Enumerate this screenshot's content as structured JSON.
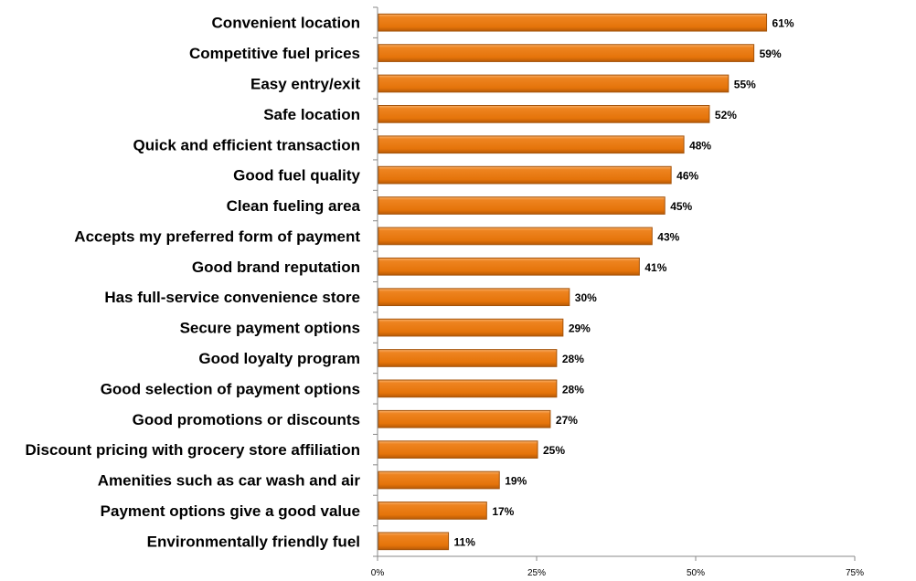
{
  "chart_data": {
    "type": "bar",
    "orientation": "horizontal",
    "title": "",
    "xlabel": "",
    "ylabel": "",
    "xlim": [
      0,
      75
    ],
    "x_ticks": [
      "0%",
      "25%",
      "50%",
      "75%"
    ],
    "x_tick_values": [
      0,
      25,
      50,
      75
    ],
    "grid": false,
    "legend": "none",
    "bar_color": "#e8760a",
    "categories": [
      "Convenient location",
      "Competitive fuel prices",
      "Easy entry/exit",
      "Safe location",
      "Quick and efficient transaction",
      "Good fuel quality",
      "Clean fueling area",
      "Accepts my preferred form of payment",
      "Good brand reputation",
      "Has full-service convenience store",
      "Secure payment options",
      "Good loyalty program",
      "Good selection of payment options",
      "Good promotions or discounts",
      "Discount pricing with grocery store affiliation",
      "Amenities such as car wash and air",
      "Payment options give a good value",
      "Environmentally friendly fuel"
    ],
    "values": [
      61,
      59,
      55,
      52,
      48,
      46,
      45,
      43,
      41,
      30,
      29,
      28,
      28,
      27,
      25,
      19,
      17,
      11
    ],
    "value_labels": [
      "61%",
      "59%",
      "55%",
      "52%",
      "48%",
      "46%",
      "45%",
      "43%",
      "41%",
      "30%",
      "29%",
      "28%",
      "28%",
      "27%",
      "25%",
      "19%",
      "17%",
      "11%"
    ]
  }
}
